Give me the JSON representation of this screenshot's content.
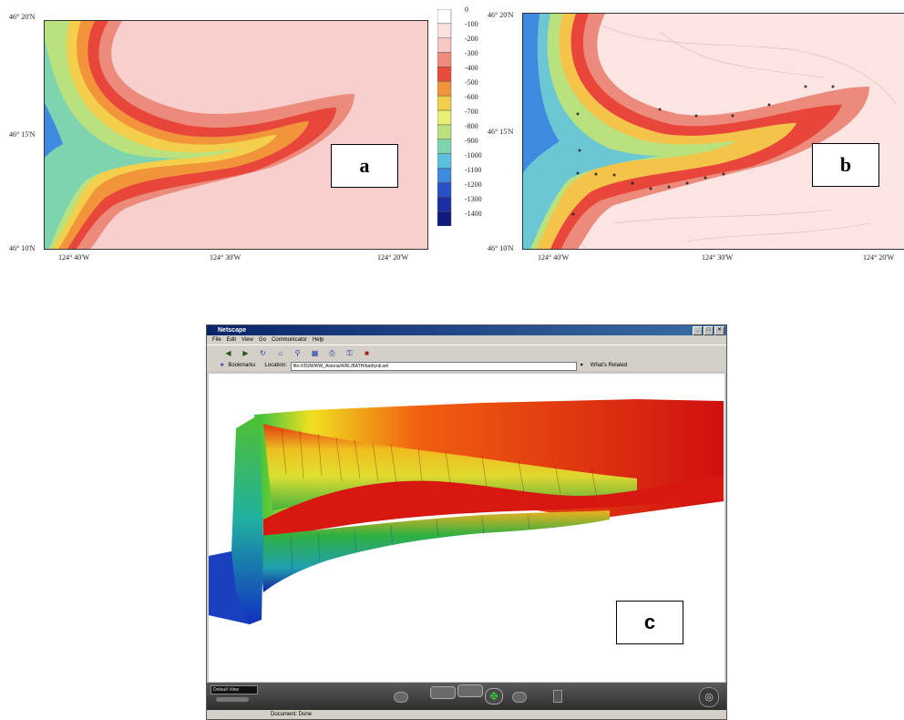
{
  "panel_a": {
    "label": "a",
    "lat_labels": [
      "46° 20'N",
      "46° 15'N",
      "46° 10'N"
    ],
    "lon_labels": [
      "124° 40'W",
      "124° 30'W",
      "124° 20'W"
    ],
    "legend_values": [
      "0",
      "-100",
      "-200",
      "-300",
      "-400",
      "-500",
      "-600",
      "-700",
      "-800",
      "-900",
      "-1000",
      "-1100",
      "-1200",
      "-1300",
      "-1400"
    ],
    "legend_colors": [
      "#ffffff",
      "#fbe2e0",
      "#f6c7c4",
      "#f08b7c",
      "#ea4c3c",
      "#f2953a",
      "#f3cf4c",
      "#e8ef72",
      "#b9e27e",
      "#7fd4b0",
      "#5ac2e0",
      "#3d8ae0",
      "#2a50c8",
      "#1c2ea6",
      "#121a80"
    ]
  },
  "panel_b": {
    "label": "b",
    "lat_labels": [
      "46° 20'N",
      "46° 15'N",
      "46° 10'N"
    ],
    "lon_labels": [
      "124° 40'W",
      "124° 30'W",
      "124° 20'W"
    ]
  },
  "panel_c": {
    "label": "c",
    "window": {
      "title": "Netscape",
      "menu": [
        "File",
        "Edit",
        "View",
        "Go",
        "Communicator",
        "Help"
      ],
      "bookmarks_label": "Bookmarks",
      "location_label": "Location:",
      "location_value": "file:///D|/WWW_Astoria/WRL/BATH/bathynb.wrl",
      "whats_related": "What's Related",
      "viewpoint": "Default View",
      "status": "Document: Done"
    }
  }
}
